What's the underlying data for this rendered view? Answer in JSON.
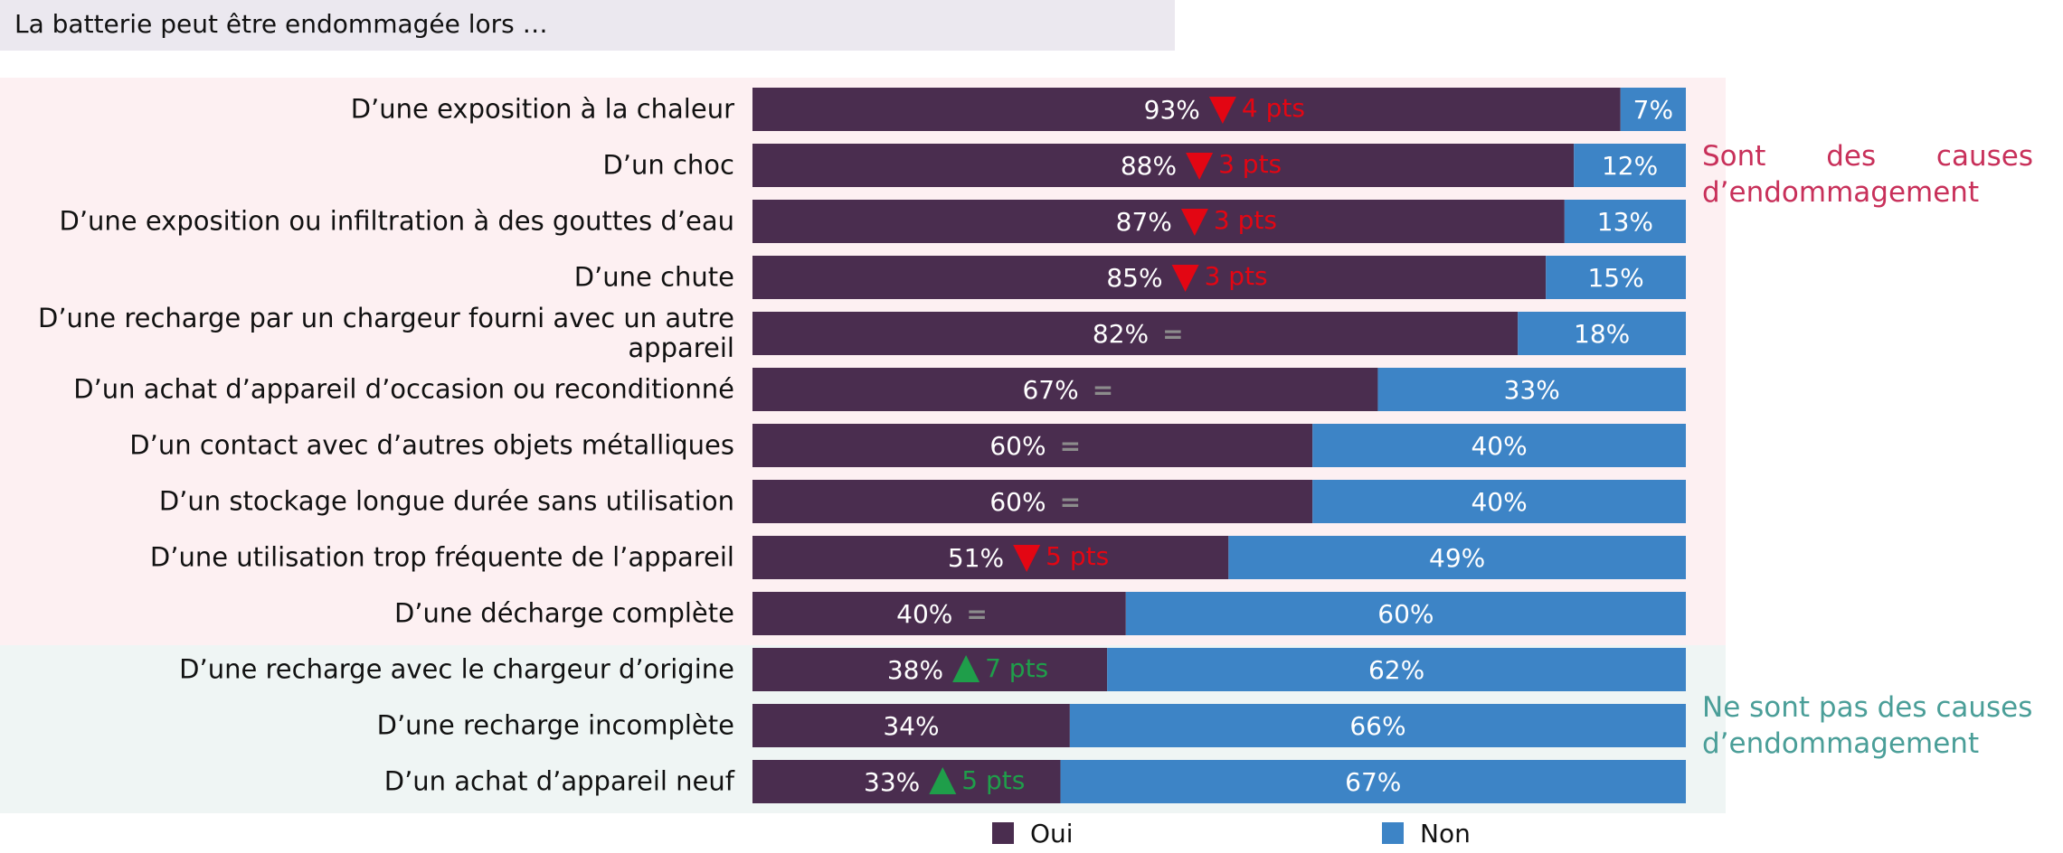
{
  "chart_data": {
    "type": "stacked-bar-horizontal",
    "header": "La batterie peut être endommagée lors …",
    "groups": [
      {
        "label": "Sont des causes d’endommagement",
        "color": "#c8305a",
        "background": "#fdf0f2",
        "align": "justify",
        "categories": [
          "D’une exposition à la chaleur",
          "D’un choc",
          "D’une exposition ou infiltration à des gouttes d’eau",
          "D’une chute",
          "D’une recharge par un chargeur fourni avec un autre appareil",
          "D’un achat d’appareil d’occasion ou reconditionné",
          "D’un contact avec d’autres objets métalliques",
          "D’un stockage longue durée sans utilisation",
          "D’une utilisation trop fréquente de l’appareil",
          "D’une décharge complète"
        ]
      },
      {
        "label": "Ne sont pas des causes d’endommagement",
        "color": "#4a9e98",
        "background": "#eff5f4",
        "align": "left",
        "categories": [
          "D’une recharge avec le chargeur d’origine",
          "D’une recharge incomplète",
          "D’un achat d’appareil neuf"
        ]
      }
    ],
    "xlim": [
      0,
      100
    ],
    "series": [
      {
        "name": "Oui",
        "color": "#4a2d4f",
        "values": [
          93,
          88,
          87,
          85,
          82,
          67,
          60,
          60,
          51,
          40,
          38,
          34,
          33
        ],
        "value_labels": [
          "93%",
          "88%",
          "87%",
          "85%",
          "82%",
          "67%",
          "60%",
          "60%",
          "51%",
          "40%",
          "38%",
          "34%",
          "33%"
        ]
      },
      {
        "name": "Non",
        "color": "#3d84c6",
        "values": [
          7,
          12,
          13,
          15,
          18,
          33,
          40,
          40,
          49,
          60,
          62,
          66,
          67
        ],
        "value_labels": [
          "7%",
          "12%",
          "13%",
          "15%",
          "18%",
          "33%",
          "40%",
          "40%",
          "49%",
          "60%",
          "62%",
          "66%",
          "67%"
        ]
      }
    ],
    "changes": [
      {
        "direction": "down",
        "label": "4 pts"
      },
      {
        "direction": "down",
        "label": "3 pts"
      },
      {
        "direction": "down",
        "label": "3 pts"
      },
      {
        "direction": "down",
        "label": "3 pts"
      },
      {
        "direction": "same",
        "label": "="
      },
      {
        "direction": "same",
        "label": "="
      },
      {
        "direction": "same",
        "label": "="
      },
      {
        "direction": "same",
        "label": "="
      },
      {
        "direction": "down",
        "label": "5 pts"
      },
      {
        "direction": "same",
        "label": "="
      },
      {
        "direction": "up",
        "label": "7 pts"
      },
      null,
      {
        "direction": "up",
        "label": "5 pts"
      }
    ],
    "change_colors": {
      "down": "#e30613",
      "up": "#1f9e4a",
      "same": "#8c8c8c"
    }
  }
}
